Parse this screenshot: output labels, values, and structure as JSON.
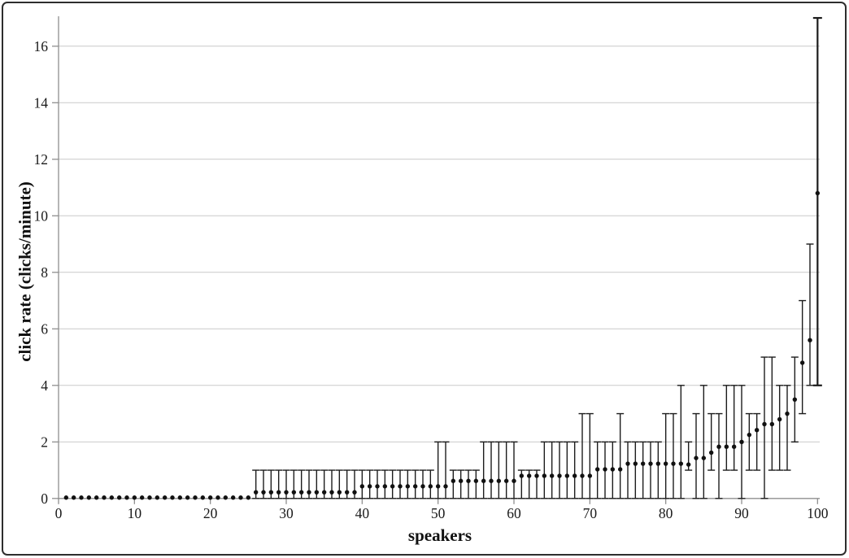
{
  "figure": {
    "background": "#ffffff",
    "border_color": "#2e2e2e"
  },
  "chart_data": {
    "type": "scatter",
    "title": "",
    "xlabel": "speakers",
    "ylabel": "click rate (clicks/minute)",
    "xlim": [
      0,
      102
    ],
    "ylim": [
      0,
      17.1
    ],
    "x_ticks": [
      0,
      10,
      20,
      30,
      40,
      50,
      60,
      70,
      80,
      90,
      100
    ],
    "y_ticks": [
      0,
      2,
      4,
      6,
      8,
      10,
      12,
      14,
      16
    ],
    "grid": "horizontal-only",
    "legend": "none",
    "marker": "filled-black-circle",
    "error_bars": "min-max range with end caps",
    "colors": {
      "marker": "#111111",
      "error_bar": "#1c1c1c",
      "axis_line": "#8f8f8f",
      "gridline": "#c9c9c9",
      "tick_text": "#1a1a1a"
    },
    "points_format": [
      "speaker_x",
      "mean",
      "min",
      "max"
    ],
    "points": [
      [
        1,
        0.03,
        0.03,
        0.03
      ],
      [
        2,
        0.03,
        0.03,
        0.03
      ],
      [
        3,
        0.03,
        0.03,
        0.03
      ],
      [
        4,
        0.03,
        0.03,
        0.03
      ],
      [
        5,
        0.03,
        0.03,
        0.03
      ],
      [
        6,
        0.03,
        0.03,
        0.03
      ],
      [
        7,
        0.03,
        0.03,
        0.03
      ],
      [
        8,
        0.03,
        0.03,
        0.03
      ],
      [
        9,
        0.03,
        0.03,
        0.03
      ],
      [
        10,
        0.03,
        0.03,
        0.03
      ],
      [
        11,
        0.03,
        0.03,
        0.03
      ],
      [
        12,
        0.03,
        0.03,
        0.03
      ],
      [
        13,
        0.03,
        0.03,
        0.03
      ],
      [
        14,
        0.03,
        0.03,
        0.03
      ],
      [
        15,
        0.03,
        0.03,
        0.03
      ],
      [
        16,
        0.03,
        0.03,
        0.03
      ],
      [
        17,
        0.03,
        0.03,
        0.03
      ],
      [
        18,
        0.03,
        0.03,
        0.03
      ],
      [
        19,
        0.03,
        0.03,
        0.03
      ],
      [
        20,
        0.03,
        0.03,
        0.03
      ],
      [
        21,
        0.03,
        0.03,
        0.03
      ],
      [
        22,
        0.03,
        0.03,
        0.03
      ],
      [
        23,
        0.03,
        0.03,
        0.03
      ],
      [
        24,
        0.03,
        0.03,
        0.03
      ],
      [
        25,
        0.03,
        0.03,
        0.03
      ],
      [
        26,
        0.22,
        0,
        1
      ],
      [
        27,
        0.22,
        0,
        1
      ],
      [
        28,
        0.22,
        0,
        1
      ],
      [
        29,
        0.22,
        0,
        1
      ],
      [
        30,
        0.22,
        0,
        1
      ],
      [
        31,
        0.22,
        0,
        1
      ],
      [
        32,
        0.22,
        0,
        1
      ],
      [
        33,
        0.22,
        0,
        1
      ],
      [
        34,
        0.22,
        0,
        1
      ],
      [
        35,
        0.22,
        0,
        1
      ],
      [
        36,
        0.22,
        0,
        1
      ],
      [
        37,
        0.22,
        0,
        1
      ],
      [
        38,
        0.22,
        0,
        1
      ],
      [
        39,
        0.22,
        0,
        1
      ],
      [
        40,
        0.43,
        0,
        1
      ],
      [
        41,
        0.43,
        0,
        1
      ],
      [
        42,
        0.43,
        0,
        1
      ],
      [
        43,
        0.43,
        0,
        1
      ],
      [
        44,
        0.43,
        0,
        1
      ],
      [
        45,
        0.43,
        0,
        1
      ],
      [
        46,
        0.43,
        0,
        1
      ],
      [
        47,
        0.43,
        0,
        1
      ],
      [
        48,
        0.43,
        0,
        1
      ],
      [
        49,
        0.43,
        0,
        1
      ],
      [
        50,
        0.43,
        0,
        2
      ],
      [
        51,
        0.43,
        0,
        2
      ],
      [
        52,
        0.62,
        0,
        1
      ],
      [
        53,
        0.62,
        0,
        1
      ],
      [
        54,
        0.62,
        0,
        1
      ],
      [
        55,
        0.62,
        0,
        1
      ],
      [
        56,
        0.62,
        0,
        2
      ],
      [
        57,
        0.62,
        0,
        2
      ],
      [
        58,
        0.62,
        0,
        2
      ],
      [
        59,
        0.62,
        0,
        2
      ],
      [
        60,
        0.62,
        0,
        2
      ],
      [
        61,
        0.8,
        0,
        1
      ],
      [
        62,
        0.8,
        0,
        1
      ],
      [
        63,
        0.8,
        0,
        1
      ],
      [
        64,
        0.8,
        0,
        2
      ],
      [
        65,
        0.8,
        0,
        2
      ],
      [
        66,
        0.8,
        0,
        2
      ],
      [
        67,
        0.8,
        0,
        2
      ],
      [
        68,
        0.8,
        0,
        2
      ],
      [
        69,
        0.8,
        0,
        3
      ],
      [
        70,
        0.8,
        0,
        3
      ],
      [
        71,
        1.03,
        0,
        2
      ],
      [
        72,
        1.03,
        0,
        2
      ],
      [
        73,
        1.03,
        0,
        2
      ],
      [
        74,
        1.03,
        0,
        3
      ],
      [
        75,
        1.23,
        0,
        2
      ],
      [
        76,
        1.23,
        0,
        2
      ],
      [
        77,
        1.23,
        0,
        2
      ],
      [
        78,
        1.23,
        0,
        2
      ],
      [
        79,
        1.23,
        0,
        2
      ],
      [
        80,
        1.23,
        0,
        3
      ],
      [
        81,
        1.23,
        0,
        3
      ],
      [
        82,
        1.23,
        0,
        4
      ],
      [
        83,
        1.2,
        1,
        2
      ],
      [
        84,
        1.43,
        0,
        3
      ],
      [
        85,
        1.43,
        0,
        4
      ],
      [
        86,
        1.62,
        1,
        3
      ],
      [
        87,
        1.83,
        0,
        3
      ],
      [
        88,
        1.83,
        1,
        4
      ],
      [
        89,
        1.83,
        1,
        4
      ],
      [
        90,
        2.0,
        0,
        4
      ],
      [
        91,
        2.25,
        1,
        3
      ],
      [
        92,
        2.42,
        1,
        3
      ],
      [
        93,
        2.63,
        0,
        5
      ],
      [
        94,
        2.63,
        1,
        5
      ],
      [
        95,
        2.8,
        1,
        4
      ],
      [
        96,
        3.0,
        1,
        4
      ],
      [
        97,
        3.5,
        2,
        5
      ],
      [
        98,
        4.8,
        3,
        7
      ],
      [
        99,
        5.6,
        4,
        9
      ],
      [
        100,
        10.8,
        4,
        17
      ]
    ]
  }
}
